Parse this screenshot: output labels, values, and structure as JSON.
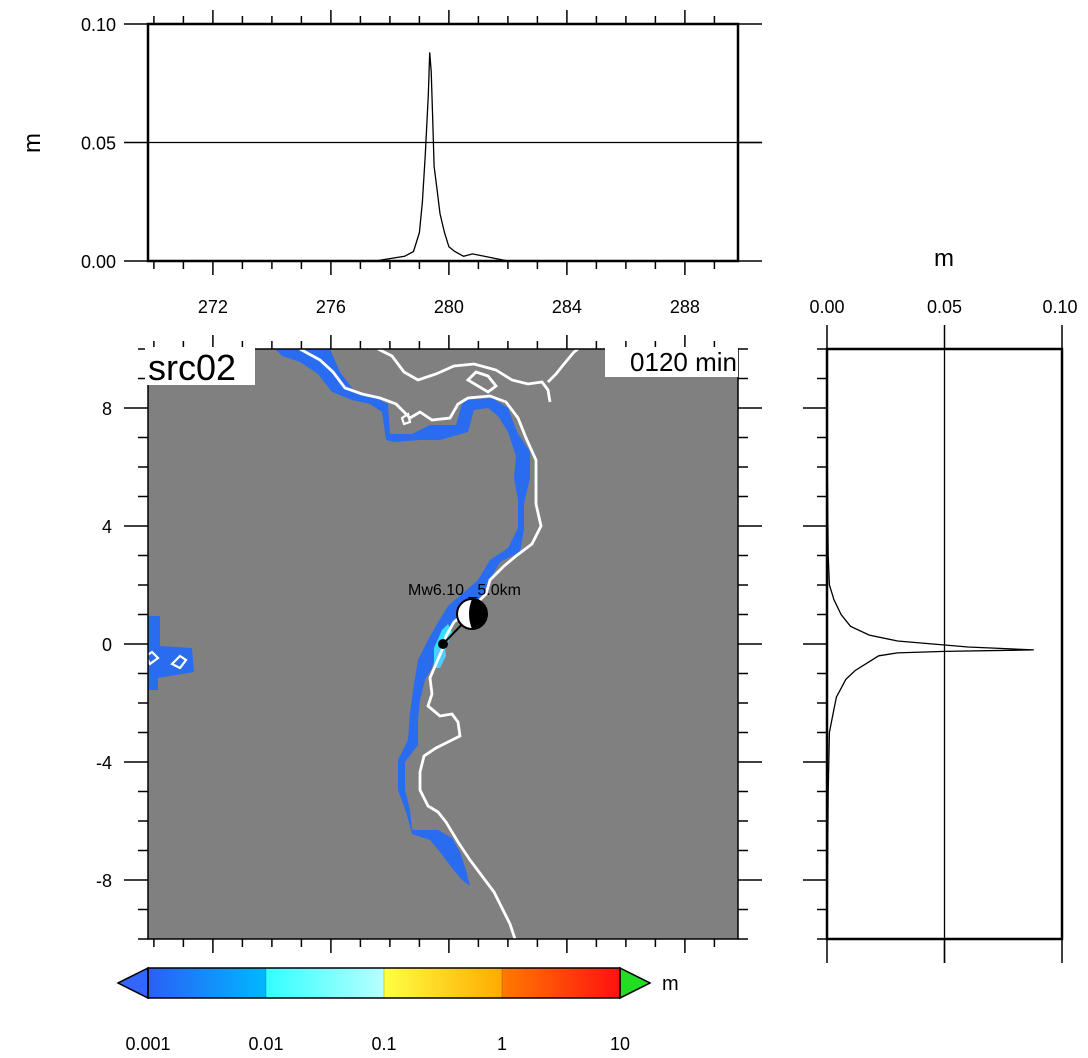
{
  "chart_data": [
    {
      "type": "line",
      "panel": "top-profile",
      "ylabel": "m",
      "xlim": [
        269.8,
        289.8
      ],
      "ylim": [
        0,
        0.1
      ],
      "x_ticks": [
        "272",
        "276",
        "280",
        "284",
        "288"
      ],
      "y_ticks": [
        "0.00",
        "0.05",
        "0.10"
      ],
      "gridlines_y": [
        0.05
      ],
      "series": [
        {
          "x": [
            269.8,
            277.5,
            278.0,
            278.5,
            278.8,
            279.0,
            279.1,
            279.2,
            279.3,
            279.35,
            279.4,
            279.45,
            279.5,
            279.6,
            279.7,
            279.85,
            280.0,
            280.2,
            280.5,
            280.8,
            281.2,
            281.6,
            282.0,
            289.8
          ],
          "values": [
            0,
            0,
            0.001,
            0.002,
            0.004,
            0.012,
            0.025,
            0.045,
            0.07,
            0.088,
            0.08,
            0.06,
            0.04,
            0.03,
            0.02,
            0.012,
            0.006,
            0.004,
            0.002,
            0.003,
            0.002,
            0.001,
            0,
            0
          ]
        }
      ]
    },
    {
      "type": "heatmap",
      "panel": "map",
      "title": "src02",
      "time_label": "0120 min",
      "ylim": [
        -10,
        10
      ],
      "y_ticks": [
        "8",
        "4",
        "0",
        "-4",
        "-8"
      ],
      "annotation": "Mw6.10 _5.0km",
      "colorbar": {
        "ticks": [
          "0.001",
          "0.01",
          "0.1",
          "1",
          "10"
        ],
        "unit": "m",
        "colors": [
          "#2a5ff5",
          "#33ffff",
          "#ffff44",
          "#ff6600",
          "#ff1111"
        ],
        "under_color": "#3366ff",
        "over_color": "#22dd22"
      },
      "background_color": "#808080",
      "coast_color": "#ffffff",
      "inundation_color": "#2a6cf0"
    },
    {
      "type": "line",
      "panel": "right-profile",
      "xlabel": "m",
      "xlim": [
        0,
        0.1
      ],
      "ylim": [
        -10,
        10
      ],
      "x_ticks": [
        "0.00",
        "0.05",
        "0.10"
      ],
      "gridlines_x": [
        0.05
      ],
      "series": [
        {
          "y": [
            10,
            7.0,
            3.0,
            2.0,
            1.5,
            1.0,
            0.6,
            0.3,
            0.1,
            0.0,
            -0.1,
            -0.2,
            -0.25,
            -0.3,
            -0.4,
            -0.6,
            -0.9,
            -1.2,
            -1.5,
            -1.8,
            -2.2,
            -3.0,
            -5.0,
            -10
          ],
          "values": [
            0,
            0,
            0.0005,
            0.001,
            0.003,
            0.006,
            0.01,
            0.018,
            0.03,
            0.045,
            0.06,
            0.088,
            0.05,
            0.03,
            0.022,
            0.018,
            0.012,
            0.008,
            0.006,
            0.004,
            0.003,
            0.001,
            0.0005,
            0
          ]
        }
      ]
    }
  ]
}
